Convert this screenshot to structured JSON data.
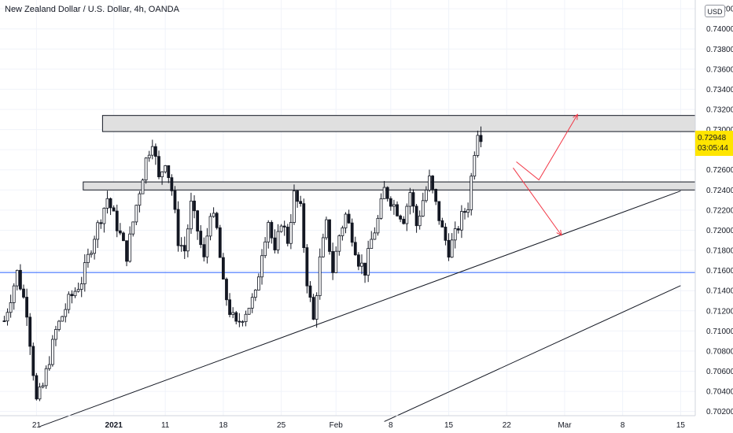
{
  "header": {
    "title": "New Zealand Dollar / U.S. Dollar, 4h, OANDA",
    "currency_button": "USD"
  },
  "price_tag": {
    "price": "0.72948",
    "countdown": "03:05:44",
    "color": "#ffe500"
  },
  "colors": {
    "up": "#131722",
    "down": "#131722",
    "grid": "#f0f3fa",
    "hline": "#2962ff",
    "arrows": "#f23645",
    "zones": "#e0e0e0"
  },
  "chart_data": {
    "type": "candlestick",
    "title": "New Zealand Dollar / U.S. Dollar, 4h, OANDA",
    "ylim": [
      0.7008,
      0.7424
    ],
    "y_ticks": [
      "0.74200",
      "0.74000",
      "0.73800",
      "0.73600",
      "0.73400",
      "0.73200",
      "0.73000",
      "0.72800",
      "0.72600",
      "0.72400",
      "0.72200",
      "0.72000",
      "0.71800",
      "0.71600",
      "0.71400",
      "0.71200",
      "0.71000",
      "0.70800",
      "0.70600",
      "0.70400",
      "0.70200"
    ],
    "x_ticks": [
      {
        "label": "21",
        "bar": 10
      },
      {
        "label": "2021",
        "bar": 34
      },
      {
        "label": "11",
        "bar": 50
      },
      {
        "label": "18",
        "bar": 68
      },
      {
        "label": "25",
        "bar": 86
      },
      {
        "label": "Feb",
        "bar": 103
      },
      {
        "label": "8",
        "bar": 120
      },
      {
        "label": "15",
        "bar": 138
      },
      {
        "label": "22",
        "bar": 156
      },
      {
        "label": "Mar",
        "bar": 174
      },
      {
        "label": "8",
        "bar": 192
      },
      {
        "label": "15",
        "bar": 210
      }
    ],
    "close_path": [
      [
        0,
        0.711
      ],
      [
        4,
        0.7158
      ],
      [
        7,
        0.712
      ],
      [
        10,
        0.703
      ],
      [
        12,
        0.7045
      ],
      [
        16,
        0.71
      ],
      [
        20,
        0.713
      ],
      [
        24,
        0.715
      ],
      [
        28,
        0.7195
      ],
      [
        32,
        0.7232
      ],
      [
        36,
        0.7195
      ],
      [
        38,
        0.7175
      ],
      [
        41,
        0.7225
      ],
      [
        44,
        0.727
      ],
      [
        46,
        0.729
      ],
      [
        48,
        0.725
      ],
      [
        50,
        0.727
      ],
      [
        52,
        0.724
      ],
      [
        54,
        0.719
      ],
      [
        56,
        0.718
      ],
      [
        58,
        0.7225
      ],
      [
        60,
        0.72
      ],
      [
        62,
        0.717
      ],
      [
        64,
        0.722
      ],
      [
        66,
        0.72
      ],
      [
        68,
        0.7145
      ],
      [
        70,
        0.712
      ],
      [
        72,
        0.7105
      ],
      [
        75,
        0.712
      ],
      [
        78,
        0.7135
      ],
      [
        80,
        0.718
      ],
      [
        82,
        0.721
      ],
      [
        84,
        0.7175
      ],
      [
        86,
        0.721
      ],
      [
        88,
        0.719
      ],
      [
        90,
        0.7235
      ],
      [
        92,
        0.722
      ],
      [
        94,
        0.715
      ],
      [
        96,
        0.711
      ],
      [
        98,
        0.717
      ],
      [
        100,
        0.7205
      ],
      [
        102,
        0.716
      ],
      [
        104,
        0.7195
      ],
      [
        106,
        0.7215
      ],
      [
        108,
        0.7195
      ],
      [
        110,
        0.717
      ],
      [
        112,
        0.716
      ],
      [
        114,
        0.719
      ],
      [
        116,
        0.721
      ],
      [
        118,
        0.724
      ],
      [
        120,
        0.723
      ],
      [
        122,
        0.722
      ],
      [
        124,
        0.7212
      ],
      [
        126,
        0.7238
      ],
      [
        128,
        0.7205
      ],
      [
        130,
        0.723
      ],
      [
        132,
        0.725
      ],
      [
        134,
        0.7225
      ],
      [
        136,
        0.72
      ],
      [
        138,
        0.718
      ],
      [
        140,
        0.7195
      ],
      [
        142,
        0.7213
      ],
      [
        144,
        0.7225
      ],
      [
        146,
        0.728
      ],
      [
        147,
        0.73
      ],
      [
        148,
        0.7295
      ]
    ],
    "resistance_zones": [
      {
        "top": 0.7314,
        "bottom": 0.7298,
        "from_bar": 31
      },
      {
        "top": 0.7248,
        "bottom": 0.724,
        "from_bar": 25
      }
    ],
    "horizontal_level": 0.7158,
    "trendlines": [
      {
        "from": [
          11,
          0.7005
        ],
        "to": [
          210,
          0.7239
        ]
      },
      {
        "from": [
          118,
          0.701
        ],
        "to": [
          210,
          0.7145
        ]
      }
    ],
    "projection_arrows": [
      {
        "path": [
          [
            159,
            0.7268
          ],
          [
            166,
            0.725
          ],
          [
            178,
            0.7315
          ]
        ]
      },
      {
        "path": [
          [
            158,
            0.7262
          ],
          [
            173,
            0.7195
          ]
        ]
      }
    ]
  }
}
